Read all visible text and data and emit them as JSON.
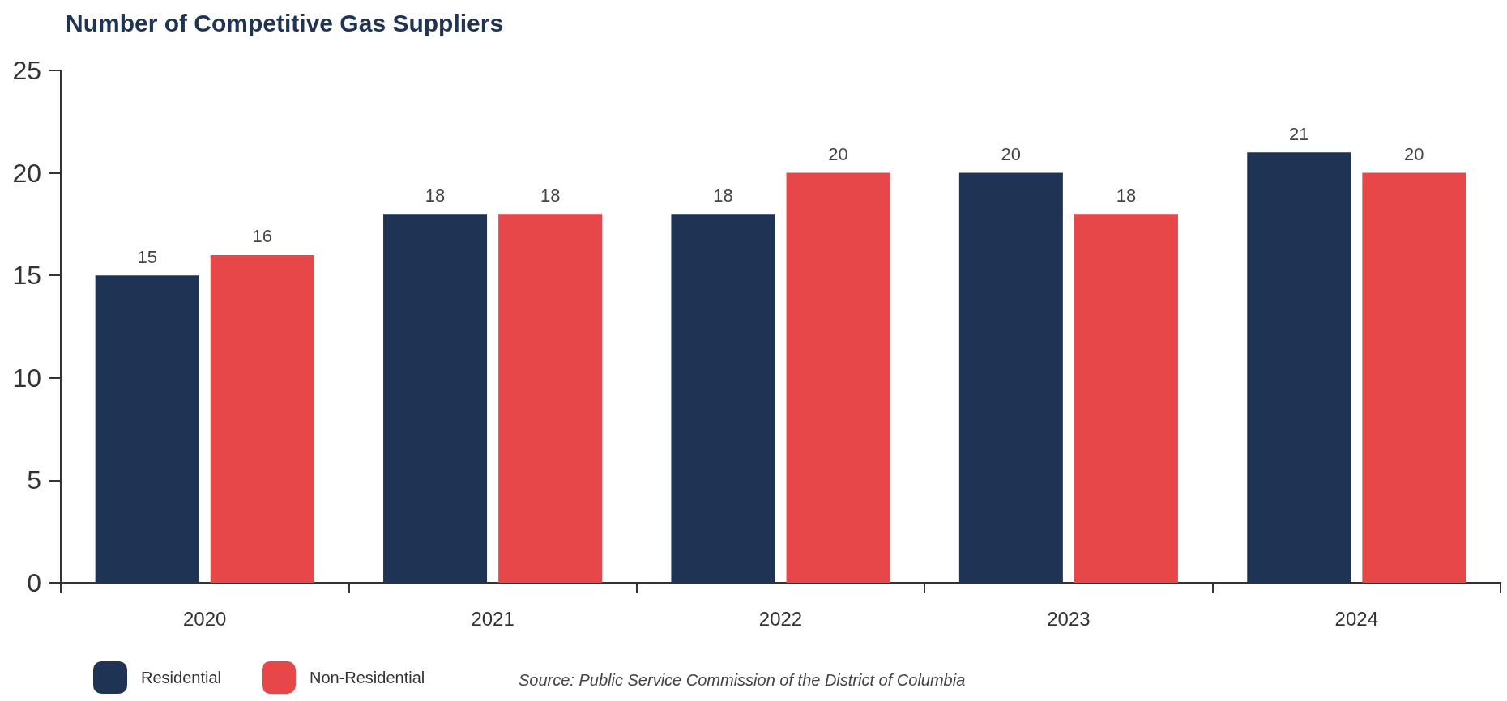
{
  "chart_data": {
    "type": "bar",
    "title": "Number of Competitive Gas Suppliers",
    "categories": [
      "2020",
      "2021",
      "2022",
      "2023",
      "2024"
    ],
    "series": [
      {
        "name": "Residential",
        "color": "#1f3354",
        "values": [
          15,
          18,
          18,
          20,
          21
        ]
      },
      {
        "name": "Non-Residential",
        "color": "#e8474a",
        "values": [
          16,
          18,
          20,
          18,
          20
        ]
      }
    ],
    "ylim": [
      0,
      25
    ],
    "yticks": [
      0,
      5,
      10,
      15,
      20,
      25
    ],
    "grid": false,
    "legend": "bottom left",
    "data_labels": true,
    "annotations": [
      "Source: Public Service Commission of the District of Columbia"
    ]
  }
}
